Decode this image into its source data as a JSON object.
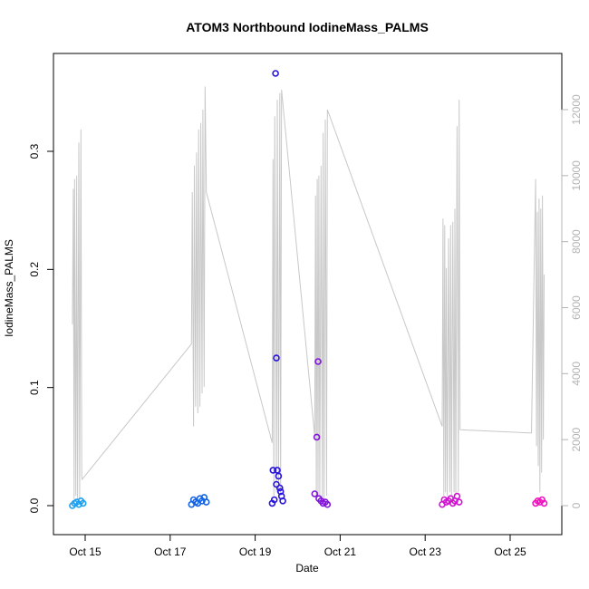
{
  "chart_data": {
    "type": "scatter",
    "title": "ATOM3 Northbound IodineMass_PALMS",
    "xlabel": "Date",
    "ylabel": "IodineMass_PALMS",
    "x_ticks": [
      "Oct 15",
      "Oct 17",
      "Oct 19",
      "Oct 21",
      "Oct 23",
      "Oct 25"
    ],
    "y_ticks": [
      "0.0",
      "0.1",
      "0.2",
      "0.3"
    ],
    "y2_ticks": [
      "0",
      "2000",
      "4000",
      "6000",
      "8000",
      "10000",
      "12000"
    ],
    "ylim": [
      0,
      0.37
    ],
    "y2lim": [
      0,
      12000
    ],
    "xlim_days": [
      14.3,
      26.5
    ],
    "grid": false,
    "series": [
      {
        "color": "#1ea0f0",
        "points": [
          {
            "x": 14.7,
            "y": 0.0
          },
          {
            "x": 14.75,
            "y": 0.002
          },
          {
            "x": 14.8,
            "y": 0.003
          },
          {
            "x": 14.85,
            "y": 0.001
          },
          {
            "x": 14.9,
            "y": 0.004
          },
          {
            "x": 14.95,
            "y": 0.002
          }
        ]
      },
      {
        "color": "#1464e6",
        "points": [
          {
            "x": 17.5,
            "y": 0.001
          },
          {
            "x": 17.55,
            "y": 0.005
          },
          {
            "x": 17.6,
            "y": 0.003
          },
          {
            "x": 17.65,
            "y": 0.002
          },
          {
            "x": 17.7,
            "y": 0.006
          },
          {
            "x": 17.75,
            "y": 0.004
          },
          {
            "x": 17.8,
            "y": 0.007
          },
          {
            "x": 17.85,
            "y": 0.003
          }
        ]
      },
      {
        "color": "#2814dc",
        "points": [
          {
            "x": 19.4,
            "y": 0.002
          },
          {
            "x": 19.42,
            "y": 0.03
          },
          {
            "x": 19.45,
            "y": 0.005
          },
          {
            "x": 19.48,
            "y": 0.366
          },
          {
            "x": 19.5,
            "y": 0.125
          },
          {
            "x": 19.52,
            "y": 0.03
          },
          {
            "x": 19.55,
            "y": 0.025
          },
          {
            "x": 19.58,
            "y": 0.015
          },
          {
            "x": 19.6,
            "y": 0.012
          },
          {
            "x": 19.62,
            "y": 0.008
          },
          {
            "x": 19.65,
            "y": 0.004
          },
          {
            "x": 19.5,
            "y": 0.018
          }
        ]
      },
      {
        "color": "#8214dc",
        "points": [
          {
            "x": 20.4,
            "y": 0.01
          },
          {
            "x": 20.45,
            "y": 0.058
          },
          {
            "x": 20.48,
            "y": 0.122
          },
          {
            "x": 20.5,
            "y": 0.006
          },
          {
            "x": 20.55,
            "y": 0.004
          },
          {
            "x": 20.6,
            "y": 0.002
          },
          {
            "x": 20.65,
            "y": 0.003
          },
          {
            "x": 20.7,
            "y": 0.001
          }
        ]
      },
      {
        "color": "#d214d2",
        "points": [
          {
            "x": 23.4,
            "y": 0.001
          },
          {
            "x": 23.45,
            "y": 0.005
          },
          {
            "x": 23.5,
            "y": 0.003
          },
          {
            "x": 23.55,
            "y": 0.004
          },
          {
            "x": 23.6,
            "y": 0.006
          },
          {
            "x": 23.65,
            "y": 0.002
          },
          {
            "x": 23.7,
            "y": 0.004
          },
          {
            "x": 23.75,
            "y": 0.008
          },
          {
            "x": 23.8,
            "y": 0.003
          }
        ]
      },
      {
        "color": "#f014be",
        "points": [
          {
            "x": 25.6,
            "y": 0.002
          },
          {
            "x": 25.65,
            "y": 0.004
          },
          {
            "x": 25.7,
            "y": 0.003
          },
          {
            "x": 25.75,
            "y": 0.005
          },
          {
            "x": 25.8,
            "y": 0.002
          }
        ]
      }
    ],
    "altitude_trace": {
      "color": "#c8c8c8",
      "axis": "right",
      "x": [
        14.7,
        14.72,
        14.74,
        14.75,
        14.78,
        14.8,
        14.82,
        14.85,
        14.87,
        14.9,
        14.92,
        14.93,
        17.5,
        17.52,
        17.55,
        17.57,
        17.6,
        17.62,
        17.65,
        17.67,
        17.7,
        17.72,
        17.75,
        17.77,
        17.8,
        17.82,
        17.85,
        19.4,
        19.42,
        19.44,
        19.46,
        19.5,
        19.52,
        19.55,
        19.58,
        19.6,
        19.62,
        20.4,
        20.42,
        20.44,
        20.46,
        20.48,
        20.5,
        20.52,
        20.55,
        20.58,
        20.6,
        20.62,
        20.65,
        20.68,
        20.7,
        23.4,
        23.42,
        23.44,
        23.46,
        23.48,
        23.5,
        23.52,
        23.55,
        23.58,
        23.6,
        23.62,
        23.65,
        23.68,
        23.7,
        23.72,
        23.75,
        23.78,
        23.8,
        23.82,
        25.5,
        25.6,
        25.62,
        25.64,
        25.66,
        25.68,
        25.7,
        25.72,
        25.74,
        25.76,
        25.78,
        25.8
      ],
      "y": [
        5500,
        9600,
        200,
        9900,
        300,
        10000,
        200,
        11000,
        200,
        11400,
        900,
        800,
        4900,
        9500,
        2400,
        10300,
        3000,
        10700,
        2800,
        11400,
        3000,
        11600,
        3400,
        12000,
        3600,
        12700,
        9500,
        1900,
        10500,
        300,
        11800,
        400,
        12300,
        300,
        12500,
        300,
        12600,
        2100,
        9400,
        200,
        9900,
        300,
        10000,
        200,
        10300,
        200,
        11300,
        200,
        11700,
        300,
        12000,
        2400,
        8700,
        300,
        8500,
        400,
        7200,
        300,
        8100,
        400,
        8500,
        300,
        8600,
        400,
        9000,
        300,
        11500,
        400,
        12300,
        2300,
        2200,
        9900,
        1800,
        8900,
        1200,
        9300,
        400,
        9000,
        1000,
        9400,
        2000,
        7000
      ]
    }
  }
}
